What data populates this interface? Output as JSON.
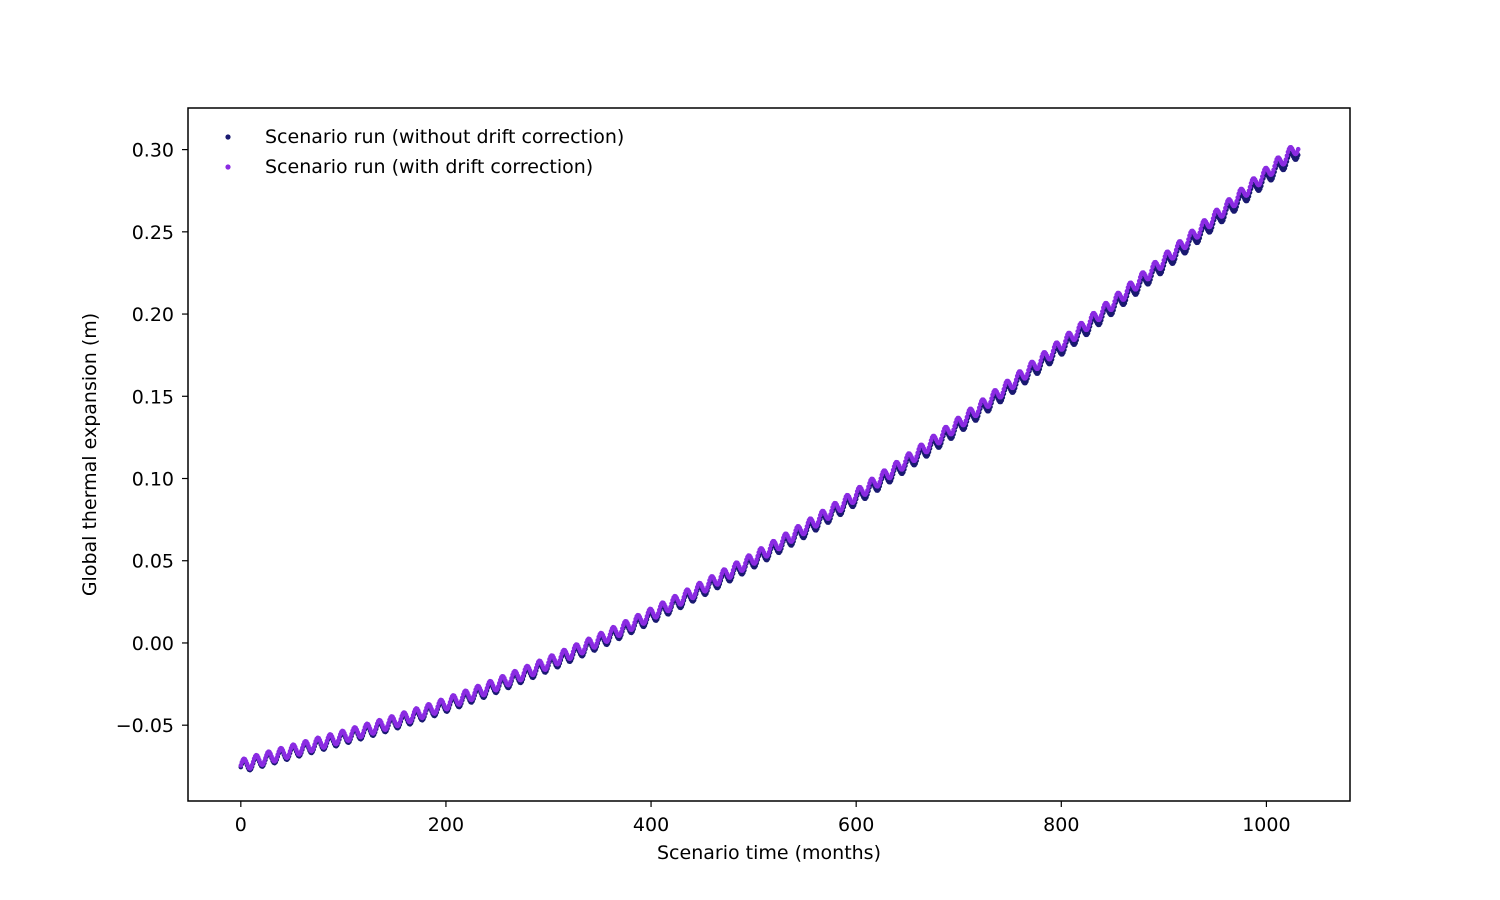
{
  "chart_data": {
    "type": "scatter",
    "title": "",
    "xlabel": "Scenario time (months)",
    "ylabel": "Global thermal expansion (m)",
    "xlim": [
      -51.5,
      1081.5
    ],
    "ylim": [
      -0.0961,
      0.3253
    ],
    "xticks": [
      0,
      200,
      400,
      600,
      800,
      1000
    ],
    "xtick_labels": [
      "0",
      "200",
      "400",
      "600",
      "800",
      "1000"
    ],
    "yticks": [
      -0.05,
      0.0,
      0.05,
      0.1,
      0.15,
      0.2,
      0.25,
      0.3
    ],
    "ytick_labels": [
      "−0.05",
      "0.00",
      "0.05",
      "0.10",
      "0.15",
      "0.20",
      "0.25",
      "0.30"
    ],
    "grid": false,
    "legend_position": "top-left",
    "series": [
      {
        "name": "Scenario run (without drift correction)",
        "color": "#191970",
        "x_start": 0,
        "x_end": 1031,
        "x_step": 1,
        "trend_y_at_x": [
          [
            0,
            -0.0755
          ],
          [
            200,
            -0.0385
          ],
          [
            400,
            0.0155
          ],
          [
            600,
            0.0875
          ],
          [
            800,
            0.1785
          ],
          [
            1031,
            0.2985
          ]
        ],
        "seasonal_period_months": 12,
        "seasonal_amplitude": 0.0035
      },
      {
        "name": "Scenario run (with drift correction)",
        "color": "#8a2be2",
        "x_start": 0,
        "x_end": 1031,
        "x_step": 1,
        "trend_y_at_x": [
          [
            0,
            -0.0745
          ],
          [
            200,
            -0.037
          ],
          [
            400,
            0.0175
          ],
          [
            600,
            0.09
          ],
          [
            800,
            0.1815
          ],
          [
            1031,
            0.302
          ]
        ],
        "seasonal_period_months": 12,
        "seasonal_amplitude": 0.0035
      }
    ]
  }
}
